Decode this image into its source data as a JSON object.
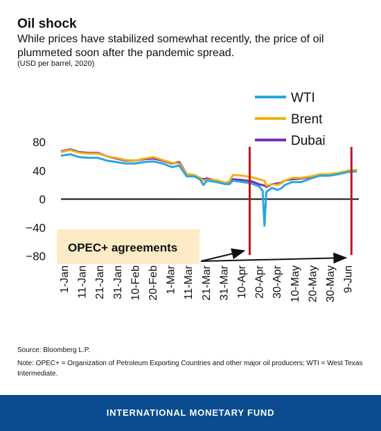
{
  "header": {
    "title": "Oil shock",
    "subtitle": "While prices have stabilized somewhat recently, the price of oil plummeted soon after the pandemic spread.",
    "units": "(USD per barrel, 2020)"
  },
  "footer": {
    "source": "Source: Bloomberg L.P.",
    "note": "Note: OPEC+ = Organization of Petroleum Exporting Countries and other major oil producers; WTI = West Texas Intermediate.",
    "brand": "INTERNATIONAL MONETARY FUND",
    "brand_color": "#0a4c8f"
  },
  "chart_data": {
    "type": "line",
    "title": "Oil shock",
    "xlabel": "",
    "ylabel": "",
    "x_ticks": [
      "1-Jan",
      "11-Jan",
      "21-Jan",
      "31-Jan",
      "10-Feb",
      "20-Feb",
      "1-Mar",
      "11-Mar",
      "21-Mar",
      "31-Mar",
      "10-Apr",
      "20-Apr",
      "30-Apr",
      "10-May",
      "20-May",
      "30-May",
      "9-Jun"
    ],
    "y_ticks": [
      80,
      40,
      0,
      -40,
      -80
    ],
    "ylim": [
      -90,
      85
    ],
    "xlim": [
      "2020-01-01",
      "2020-06-10"
    ],
    "grid": false,
    "zero_line": true,
    "legend_position": "top-right",
    "series": [
      {
        "name": "WTI",
        "color": "#29a6dc",
        "points": [
          [
            "2020-01-01",
            61
          ],
          [
            "2020-01-06",
            63
          ],
          [
            "2020-01-11",
            59
          ],
          [
            "2020-01-16",
            58
          ],
          [
            "2020-01-21",
            58
          ],
          [
            "2020-01-26",
            54
          ],
          [
            "2020-01-31",
            52
          ],
          [
            "2020-02-05",
            50
          ],
          [
            "2020-02-10",
            50
          ],
          [
            "2020-02-15",
            52
          ],
          [
            "2020-02-20",
            53
          ],
          [
            "2020-02-25",
            50
          ],
          [
            "2020-03-01",
            45
          ],
          [
            "2020-03-05",
            47
          ],
          [
            "2020-03-09",
            32
          ],
          [
            "2020-03-13",
            32
          ],
          [
            "2020-03-16",
            28
          ],
          [
            "2020-03-18",
            20
          ],
          [
            "2020-03-20",
            26
          ],
          [
            "2020-03-25",
            24
          ],
          [
            "2020-03-30",
            21
          ],
          [
            "2020-04-01",
            21
          ],
          [
            "2020-04-03",
            26
          ],
          [
            "2020-04-08",
            24
          ],
          [
            "2020-04-13",
            22
          ],
          [
            "2020-04-17",
            18
          ],
          [
            "2020-04-19",
            12
          ],
          [
            "2020-04-20",
            -37
          ],
          [
            "2020-04-21",
            10
          ],
          [
            "2020-04-24",
            16
          ],
          [
            "2020-04-27",
            13
          ],
          [
            "2020-04-29",
            15
          ],
          [
            "2020-05-01",
            20
          ],
          [
            "2020-05-05",
            24
          ],
          [
            "2020-05-10",
            24
          ],
          [
            "2020-05-15",
            29
          ],
          [
            "2020-05-20",
            33
          ],
          [
            "2020-05-25",
            33
          ],
          [
            "2020-05-30",
            35
          ],
          [
            "2020-06-04",
            38
          ],
          [
            "2020-06-09",
            39
          ]
        ]
      },
      {
        "name": "Brent",
        "color": "#f2b211",
        "points": [
          [
            "2020-01-01",
            66
          ],
          [
            "2020-01-06",
            69
          ],
          [
            "2020-01-11",
            65
          ],
          [
            "2020-01-16",
            64
          ],
          [
            "2020-01-21",
            64
          ],
          [
            "2020-01-26",
            60
          ],
          [
            "2020-01-31",
            58
          ],
          [
            "2020-02-05",
            55
          ],
          [
            "2020-02-10",
            54
          ],
          [
            "2020-02-15",
            57
          ],
          [
            "2020-02-20",
            59
          ],
          [
            "2020-02-25",
            55
          ],
          [
            "2020-03-01",
            51
          ],
          [
            "2020-03-05",
            50
          ],
          [
            "2020-03-09",
            35
          ],
          [
            "2020-03-13",
            34
          ],
          [
            "2020-03-16",
            30
          ],
          [
            "2020-03-18",
            26
          ],
          [
            "2020-03-20",
            27
          ],
          [
            "2020-03-25",
            27
          ],
          [
            "2020-03-30",
            23
          ],
          [
            "2020-04-01",
            25
          ],
          [
            "2020-04-03",
            34
          ],
          [
            "2020-04-08",
            33
          ],
          [
            "2020-04-13",
            31
          ],
          [
            "2020-04-17",
            28
          ],
          [
            "2020-04-20",
            26
          ],
          [
            "2020-04-21",
            19
          ],
          [
            "2020-04-24",
            21
          ],
          [
            "2020-04-27",
            20
          ],
          [
            "2020-04-29",
            22
          ],
          [
            "2020-05-01",
            26
          ],
          [
            "2020-05-05",
            30
          ],
          [
            "2020-05-10",
            30
          ],
          [
            "2020-05-15",
            32
          ],
          [
            "2020-05-20",
            35
          ],
          [
            "2020-05-25",
            35
          ],
          [
            "2020-05-30",
            37
          ],
          [
            "2020-06-04",
            40
          ],
          [
            "2020-06-09",
            41
          ]
        ]
      },
      {
        "name": "Dubai",
        "color": "#7b2fb5",
        "points": [
          [
            "2020-01-01",
            67
          ],
          [
            "2020-01-06",
            70
          ],
          [
            "2020-01-11",
            66
          ],
          [
            "2020-01-16",
            65
          ],
          [
            "2020-01-21",
            65
          ],
          [
            "2020-01-26",
            60
          ],
          [
            "2020-01-31",
            57
          ],
          [
            "2020-02-05",
            54
          ],
          [
            "2020-02-10",
            54
          ],
          [
            "2020-02-15",
            56
          ],
          [
            "2020-02-20",
            57
          ],
          [
            "2020-02-25",
            54
          ],
          [
            "2020-03-01",
            50
          ],
          [
            "2020-03-05",
            52
          ],
          [
            "2020-03-09",
            35
          ],
          [
            "2020-03-13",
            34
          ],
          [
            "2020-03-16",
            30
          ],
          [
            "2020-03-18",
            28
          ],
          [
            "2020-03-20",
            29
          ],
          [
            "2020-03-25",
            26
          ],
          [
            "2020-03-30",
            23
          ],
          [
            "2020-04-01",
            24
          ],
          [
            "2020-04-03",
            28
          ],
          [
            "2020-04-08",
            27
          ],
          [
            "2020-04-13",
            25
          ],
          [
            "2020-04-17",
            21
          ],
          [
            "2020-04-20",
            19
          ],
          [
            "2020-04-21",
            17
          ],
          [
            "2020-04-24",
            21
          ],
          [
            "2020-04-27",
            22
          ],
          [
            "2020-04-29",
            23
          ],
          [
            "2020-05-01",
            26
          ],
          [
            "2020-05-05",
            28
          ],
          [
            "2020-05-10",
            29
          ],
          [
            "2020-05-15",
            31
          ],
          [
            "2020-05-20",
            34
          ],
          [
            "2020-05-25",
            35
          ],
          [
            "2020-05-30",
            36
          ],
          [
            "2020-06-04",
            40
          ],
          [
            "2020-06-09",
            41
          ]
        ]
      }
    ],
    "markers": [
      {
        "date": "2020-04-12",
        "color": "#c0141b"
      },
      {
        "date": "2020-06-06",
        "color": "#c0141b"
      }
    ],
    "annotation": {
      "text": "OPEC+ agreements",
      "box_color": "#fcebc4",
      "targets": [
        "2020-04-12",
        "2020-06-06"
      ]
    }
  }
}
